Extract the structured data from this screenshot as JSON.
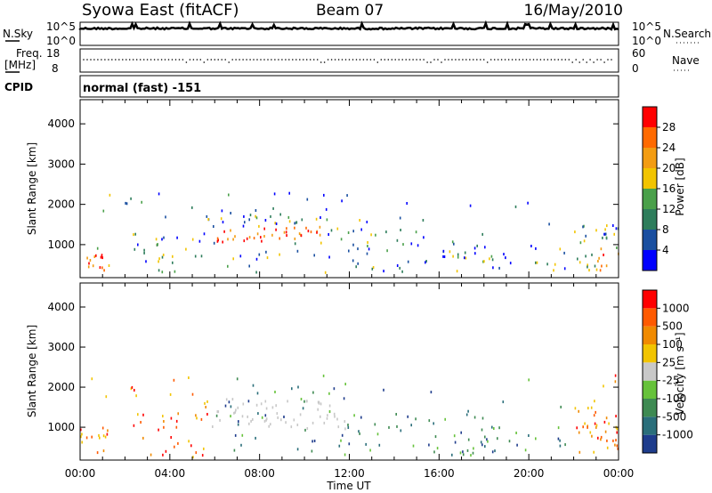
{
  "header": {
    "station": "Syowa East (fitACF)",
    "beam": "Beam 07",
    "date": "16/May/2010"
  },
  "top_panels": {
    "nsky_label": "N.Sky",
    "nsearch_label": "N.Search",
    "freq_label_1": "Freq.",
    "freq_label_2": "[MHz]",
    "nave_label": "Nave",
    "cpid_label": "CPID",
    "cpid_text": "normal (fast) -151",
    "noise_left_ticks": [
      "10^5",
      "10^0"
    ],
    "noise_right_ticks": [
      "10^5",
      "10^0"
    ],
    "freq_left_ticks": [
      "18",
      "8"
    ],
    "freq_right_ticks": [
      "60",
      "0"
    ]
  },
  "colors": {
    "power": [
      "#0000ff",
      "#1a4fa0",
      "#2e7d5b",
      "#4aa04a",
      "#f2c400",
      "#f39c12",
      "#ff6a00",
      "#ff0000"
    ],
    "velocity": [
      "#1e3c8c",
      "#2a6e7a",
      "#3e8a52",
      "#66c23a",
      "#c8c8c8",
      "#f2c400",
      "#f08a00",
      "#ff5a00",
      "#ff0000"
    ]
  },
  "chart_data": [
    {
      "type": "heatmap",
      "name": "power-panel",
      "ylabel": "Slant Range [km]",
      "xlabel": "",
      "xlim": [
        0,
        24
      ],
      "ylim": [
        180,
        4600
      ],
      "x_ticks": [
        "00:00",
        "04:00",
        "08:00",
        "12:00",
        "16:00",
        "20:00",
        "00:00"
      ],
      "y_ticks": [
        1000,
        2000,
        3000,
        4000
      ],
      "colorbar": {
        "label": "Power [dB]",
        "ticks": [
          "4",
          "8",
          "12",
          "16",
          "20",
          "24",
          "28"
        ]
      }
    },
    {
      "type": "heatmap",
      "name": "velocity-panel",
      "ylabel": "Slant Range [km]",
      "xlabel": "Time UT",
      "xlim": [
        0,
        24
      ],
      "ylim": [
        180,
        4600
      ],
      "x_ticks": [
        "00:00",
        "04:00",
        "08:00",
        "12:00",
        "16:00",
        "20:00",
        "00:00"
      ],
      "y_ticks": [
        1000,
        2000,
        3000,
        4000
      ],
      "colorbar": {
        "label": "Velocity [m s⁻¹]",
        "ticks": [
          "1000",
          "500",
          "100",
          "25",
          "-25",
          "-100",
          "-500",
          "-1000"
        ]
      }
    }
  ]
}
